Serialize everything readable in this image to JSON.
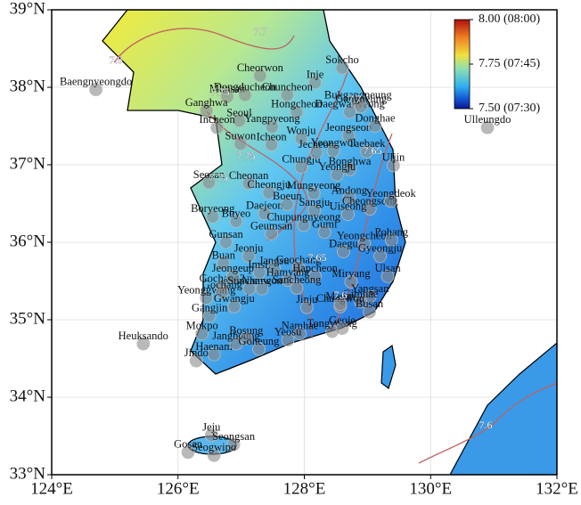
{
  "map_data": {
    "xlim": [
      124,
      132
    ],
    "ylim": [
      33,
      39
    ],
    "xticks": [
      {
        "value": 124,
        "label": "124°E"
      },
      {
        "value": 126,
        "label": "126°E"
      },
      {
        "value": 128,
        "label": "128°E"
      },
      {
        "value": 130,
        "label": "130°E"
      },
      {
        "value": 132,
        "label": "132°E"
      }
    ],
    "yticks": [
      {
        "value": 33,
        "label": "33°N"
      },
      {
        "value": 34,
        "label": "34°N"
      },
      {
        "value": 35,
        "label": "35°N"
      },
      {
        "value": 36,
        "label": "36°N"
      },
      {
        "value": 37,
        "label": "37°N"
      },
      {
        "value": 38,
        "label": "38°N"
      },
      {
        "value": 39,
        "label": "39°N"
      }
    ],
    "colorbar": {
      "clim": [
        7.5,
        8.0
      ],
      "ticks": [
        {
          "value": 8.0,
          "label": "8.00 (08:00)"
        },
        {
          "value": 7.75,
          "label": "7.75 (07:45)"
        },
        {
          "value": 7.5,
          "label": "7.50 (07:30)"
        }
      ]
    },
    "contour_labels": [
      7.8,
      7.7,
      7.75,
      7.7,
      7.75,
      7.75,
      7.65,
      7.65,
      7.6,
      7.6
    ],
    "stations": [
      {
        "name": "Baengnyeongdo",
        "lon": 124.7,
        "lat": 37.97
      },
      {
        "name": "Sokcho",
        "lon": 128.6,
        "lat": 38.25
      },
      {
        "name": "Inje",
        "lon": 128.17,
        "lat": 38.06
      },
      {
        "name": "Cheorwon",
        "lon": 127.3,
        "lat": 38.15
      },
      {
        "name": "Chuncheon",
        "lon": 127.73,
        "lat": 37.9
      },
      {
        "name": "Daegwallyeong",
        "lon": 128.72,
        "lat": 37.68
      },
      {
        "name": "Bukgangneung",
        "lon": 128.85,
        "lat": 37.8
      },
      {
        "name": "Gangneung",
        "lon": 128.9,
        "lat": 37.75
      },
      {
        "name": "Hongcheon",
        "lon": 127.88,
        "lat": 37.68
      },
      {
        "name": "Munsan",
        "lon": 126.78,
        "lat": 37.88
      },
      {
        "name": "Dongducheon",
        "lon": 127.06,
        "lat": 37.9
      },
      {
        "name": "Ganghwa",
        "lon": 126.45,
        "lat": 37.7
      },
      {
        "name": "Seoul",
        "lon": 126.97,
        "lat": 37.57
      },
      {
        "name": "Yangpyeong",
        "lon": 127.49,
        "lat": 37.49
      },
      {
        "name": "Incheon",
        "lon": 126.62,
        "lat": 37.48
      },
      {
        "name": "Wonju",
        "lon": 127.95,
        "lat": 37.34
      },
      {
        "name": "Jeongseon",
        "lon": 128.7,
        "lat": 37.38
      },
      {
        "name": "Donghae",
        "lon": 129.12,
        "lat": 37.5
      },
      {
        "name": "Ulleungdo",
        "lon": 130.9,
        "lat": 37.48
      },
      {
        "name": "Suwon",
        "lon": 126.99,
        "lat": 37.27
      },
      {
        "name": "Icheon",
        "lon": 127.48,
        "lat": 37.26
      },
      {
        "name": "Taebaek",
        "lon": 128.99,
        "lat": 37.17
      },
      {
        "name": "Cheonan",
        "lon": 127.12,
        "lat": 36.76
      },
      {
        "name": "Chungju",
        "lon": 127.95,
        "lat": 36.97
      },
      {
        "name": "Jecheon",
        "lon": 128.19,
        "lat": 37.16
      },
      {
        "name": "Yeongwol",
        "lon": 128.46,
        "lat": 37.18
      },
      {
        "name": "Bonghwa",
        "lon": 128.72,
        "lat": 36.94
      },
      {
        "name": "Yeongju",
        "lon": 128.52,
        "lat": 36.87
      },
      {
        "name": "Uljin",
        "lon": 129.41,
        "lat": 36.99
      },
      {
        "name": "Seosan",
        "lon": 126.49,
        "lat": 36.77
      },
      {
        "name": "Cheongju",
        "lon": 127.44,
        "lat": 36.64
      },
      {
        "name": "Mungyeong",
        "lon": 128.15,
        "lat": 36.63
      },
      {
        "name": "Andong",
        "lon": 128.71,
        "lat": 36.57
      },
      {
        "name": "Cheongsong",
        "lon": 129.04,
        "lat": 36.43
      },
      {
        "name": "Yeongdeok",
        "lon": 129.37,
        "lat": 36.53
      },
      {
        "name": "Daejeon",
        "lon": 127.37,
        "lat": 36.37
      },
      {
        "name": "Boeun",
        "lon": 127.73,
        "lat": 36.49
      },
      {
        "name": "Sangju",
        "lon": 128.16,
        "lat": 36.41
      },
      {
        "name": "Boryeong",
        "lon": 126.55,
        "lat": 36.33
      },
      {
        "name": "Buyeo",
        "lon": 126.92,
        "lat": 36.27
      },
      {
        "name": "Chupungnyeong",
        "lon": 127.99,
        "lat": 36.22
      },
      {
        "name": "Uiseong",
        "lon": 128.69,
        "lat": 36.36
      },
      {
        "name": "Yeongcheon",
        "lon": 128.95,
        "lat": 35.98
      },
      {
        "name": "Gumi",
        "lon": 128.32,
        "lat": 36.13
      },
      {
        "name": "Geumsan",
        "lon": 127.48,
        "lat": 36.11
      },
      {
        "name": "Gunsan",
        "lon": 126.76,
        "lat": 36.0
      },
      {
        "name": "Jeonju",
        "lon": 127.12,
        "lat": 35.82
      },
      {
        "name": "Daegu",
        "lon": 128.62,
        "lat": 35.88
      },
      {
        "name": "Pohang",
        "lon": 129.38,
        "lat": 36.03
      },
      {
        "name": "Gyeongju",
        "lon": 129.2,
        "lat": 35.82
      },
      {
        "name": "Buan",
        "lon": 126.72,
        "lat": 35.73
      },
      {
        "name": "Imsil",
        "lon": 127.29,
        "lat": 35.61
      },
      {
        "name": "Jangsu",
        "lon": 127.52,
        "lat": 35.66
      },
      {
        "name": "Geochang",
        "lon": 127.91,
        "lat": 35.67
      },
      {
        "name": "Hapcheon",
        "lon": 128.17,
        "lat": 35.56
      },
      {
        "name": "Miryang",
        "lon": 128.74,
        "lat": 35.49
      },
      {
        "name": "Ulsan",
        "lon": 129.32,
        "lat": 35.56
      },
      {
        "name": "Gochang2",
        "lon": 126.7,
        "lat": 35.43
      },
      {
        "name": "Jeongeup",
        "lon": 126.87,
        "lat": 35.56
      },
      {
        "name": "Hamyang",
        "lon": 127.74,
        "lat": 35.51
      },
      {
        "name": "Yeonggwang",
        "lon": 126.45,
        "lat": 35.28
      },
      {
        "name": "Gochang",
        "lon": 126.7,
        "lat": 35.35
      },
      {
        "name": "Sunchang",
        "lon": 127.13,
        "lat": 35.4
      },
      {
        "name": "Namwon",
        "lon": 127.33,
        "lat": 35.4
      },
      {
        "name": "Sancheong",
        "lon": 127.88,
        "lat": 35.41
      },
      {
        "name": "Jinju",
        "lon": 128.04,
        "lat": 35.16
      },
      {
        "name": "Yangsan",
        "lon": 129.04,
        "lat": 35.3
      },
      {
        "name": "Gimhae",
        "lon": 128.89,
        "lat": 35.23
      },
      {
        "name": "Busan",
        "lon": 129.03,
        "lat": 35.1
      },
      {
        "name": "Changwon",
        "lon": 128.57,
        "lat": 35.17
      },
      {
        "name": "Masan",
        "lon": 128.57,
        "lat": 35.2
      },
      {
        "name": "Gwangju",
        "lon": 126.89,
        "lat": 35.17
      },
      {
        "name": "Gangjin",
        "lon": 126.5,
        "lat": 35.05
      },
      {
        "name": "Mokpo",
        "lon": 126.38,
        "lat": 34.82
      },
      {
        "name": "Heuksando",
        "lon": 125.45,
        "lat": 34.69
      },
      {
        "name": "Haenam",
        "lon": 126.57,
        "lat": 34.55
      },
      {
        "name": "Jangheung",
        "lon": 126.92,
        "lat": 34.69
      },
      {
        "name": "Bosung",
        "lon": 127.08,
        "lat": 34.76
      },
      {
        "name": "Namhae",
        "lon": 127.93,
        "lat": 34.82
      },
      {
        "name": "Yeosu",
        "lon": 127.74,
        "lat": 34.74
      },
      {
        "name": "Goheung",
        "lon": 127.28,
        "lat": 34.62
      },
      {
        "name": "Tongyeong",
        "lon": 128.44,
        "lat": 34.85
      },
      {
        "name": "Geoje",
        "lon": 128.6,
        "lat": 34.89
      },
      {
        "name": "Jindo",
        "lon": 126.29,
        "lat": 34.47
      },
      {
        "name": "Jeju",
        "lon": 126.53,
        "lat": 33.51
      },
      {
        "name": "Seongsan",
        "lon": 126.88,
        "lat": 33.39
      },
      {
        "name": "Gosan",
        "lon": 126.16,
        "lat": 33.29
      },
      {
        "name": "Seogwipo",
        "lon": 126.57,
        "lat": 33.25
      }
    ]
  }
}
